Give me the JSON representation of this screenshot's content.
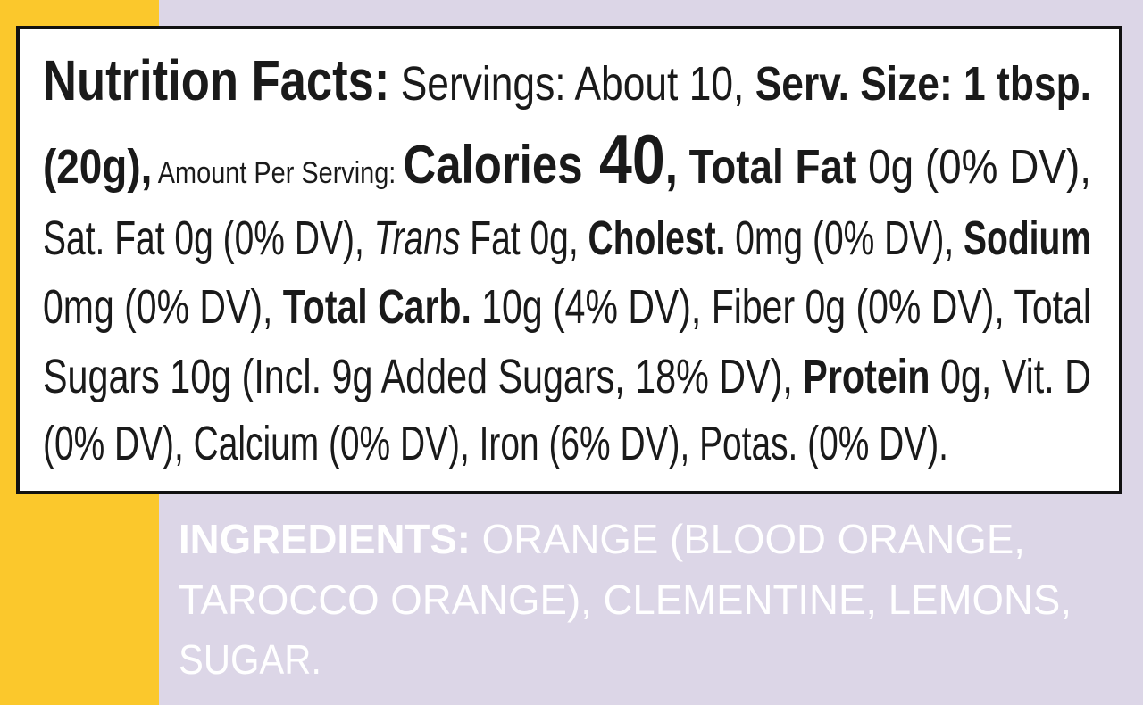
{
  "nutrition_facts": {
    "lines": [
      [
        {
          "text": "Nutrition Facts:",
          "bold": true
        },
        {
          "text": " Servings: About 10, "
        },
        {
          "text": "Serv. Size: 1 tbsp.",
          "bold": true
        }
      ],
      [
        {
          "text": "(20g),",
          "bold": true
        },
        {
          "text": " Amount Per Serving: "
        },
        {
          "text": "Calories",
          "bold": true
        },
        {
          "text": " 40",
          "bold": true
        },
        {
          "text": ",",
          "bold": true
        },
        {
          "text": " Total Fat",
          "bold": true
        },
        {
          "text": " 0g (0% DV),"
        }
      ],
      [
        {
          "text": "Sat. Fat 0g (0% DV), "
        },
        {
          "text": "Trans",
          "italic": true
        },
        {
          "text": " Fat 0g, "
        },
        {
          "text": "Cholest.",
          "bold": true
        },
        {
          "text": " 0mg (0% DV), "
        },
        {
          "text": "Sodium",
          "bold": true
        }
      ],
      [
        {
          "text": "0mg (0% DV), "
        },
        {
          "text": "Total Carb.",
          "bold": true
        },
        {
          "text": " 10g (4% DV), Fiber 0g (0% DV), Total"
        }
      ],
      [
        {
          "text": "Sugars 10g (Incl. 9g Added Sugars, 18% DV), "
        },
        {
          "text": "Protein",
          "bold": true
        },
        {
          "text": " 0g, Vit. D"
        }
      ],
      [
        {
          "text": "(0% DV), Calcium (0% DV), Iron (6% DV), Potas. (0% DV)."
        }
      ]
    ]
  },
  "ingredients": {
    "lines": [
      [
        {
          "text": "INGREDIENTS:",
          "bold": true
        },
        {
          "text": " ORANGE (BLOOD ORANGE,"
        }
      ],
      [
        {
          "text": "TAROCCO ORANGE), CLEMENTINE, LEMONS,"
        }
      ],
      [
        {
          "text": "SUGAR."
        }
      ]
    ]
  }
}
